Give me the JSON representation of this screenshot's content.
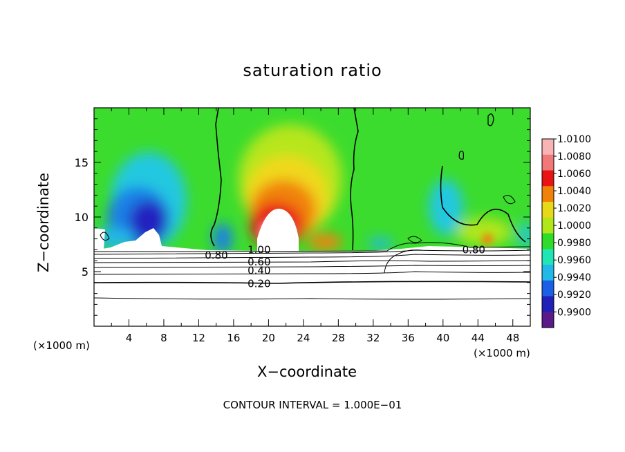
{
  "chart_data": {
    "type": "heatmap",
    "title": "saturation ratio",
    "xlabel": "X−coordinate",
    "ylabel": "Z−coordinate",
    "x_unit_left": "(×1000 m)",
    "x_unit_right": "(×1000 m)",
    "xlim": [
      0,
      50
    ],
    "ylim": [
      0,
      20
    ],
    "x_ticks": [
      4,
      8,
      12,
      16,
      20,
      24,
      28,
      32,
      36,
      40,
      44,
      48
    ],
    "y_ticks": [
      5,
      10,
      15
    ],
    "colorbar": {
      "levels": [
        "0.9900",
        "0.9920",
        "0.9940",
        "0.9960",
        "0.9980",
        "1.0000",
        "1.0020",
        "1.0040",
        "1.0060",
        "1.0080",
        "1.0100"
      ],
      "colors": [
        "#5a1a8a",
        "#2020b8",
        "#1b5fe6",
        "#22b8e8",
        "#1fe6b4",
        "#2fdc2a",
        "#b0e61a",
        "#e8d81a",
        "#f0820a",
        "#e81414",
        "#f07878",
        "#f8b4b4"
      ]
    },
    "contour_labels": [
      {
        "text": "1.00",
        "x": 17.6,
        "y": 7.0
      },
      {
        "text": "0.80",
        "x": 12.7,
        "y": 6.5
      },
      {
        "text": "0.60",
        "x": 17.6,
        "y": 5.9
      },
      {
        "text": "0.40",
        "x": 17.6,
        "y": 5.1
      },
      {
        "text": "0.20",
        "x": 17.6,
        "y": 3.9
      },
      {
        "text": "0.80",
        "x": 42.2,
        "y": 7.0
      }
    ],
    "contour_interval_text": "CONTOUR INTERVAL =  1.000E−01"
  }
}
